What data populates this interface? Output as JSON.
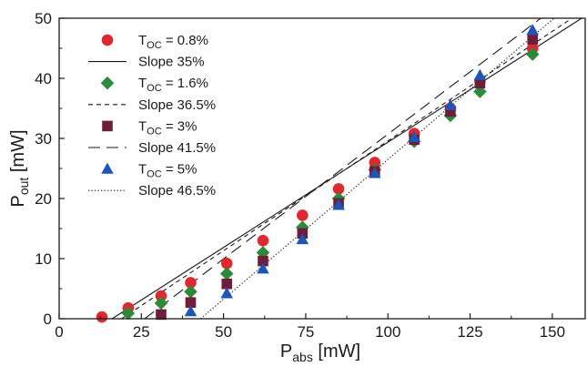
{
  "chart_data": {
    "type": "scatter",
    "xlabel": {
      "main": "P",
      "sub": "abs",
      "unit": " [mW]"
    },
    "ylabel": {
      "main": "P",
      "sub": "out",
      "unit": " [mW]"
    },
    "xlim": [
      0,
      160
    ],
    "ylim": [
      0,
      50
    ],
    "xticks": [
      0,
      25,
      50,
      75,
      100,
      125,
      150
    ],
    "yticks": [
      0,
      10,
      20,
      30,
      40,
      50
    ],
    "grid": false,
    "legend_position": "top-left",
    "series": [
      {
        "legend_main": "T",
        "legend_sub": "OC",
        "legend_rest": " = 0.8%",
        "marker": "circle",
        "color": "#e0282f",
        "x": [
          13,
          21,
          31,
          40,
          51,
          62,
          74,
          85,
          96,
          108,
          119,
          128,
          144
        ],
        "y": [
          0.3,
          1.8,
          3.8,
          6.0,
          9.2,
          13.0,
          17.2,
          21.6,
          26.0,
          30.8,
          35.0,
          39.5,
          45.0
        ]
      },
      {
        "legend_main": "T",
        "legend_sub": "OC",
        "legend_rest": " = 1.6%",
        "marker": "diamond",
        "color": "#2e8a3a",
        "x": [
          21,
          31,
          40,
          51,
          62,
          74,
          85,
          96,
          108,
          119,
          128,
          144
        ],
        "y": [
          0.9,
          2.6,
          4.5,
          7.5,
          11.0,
          15.2,
          20.0,
          24.8,
          29.5,
          33.8,
          37.8,
          44.0
        ]
      },
      {
        "legend_main": "T",
        "legend_sub": "OC",
        "legend_rest": " = 3%",
        "marker": "square",
        "color": "#6e1d3b",
        "x": [
          31,
          40,
          51,
          62,
          74,
          85,
          96,
          108,
          119,
          128,
          144
        ],
        "y": [
          0.7,
          2.7,
          5.8,
          9.6,
          14.2,
          19.2,
          24.5,
          29.8,
          34.5,
          39.2,
          46.5
        ]
      },
      {
        "legend_main": "T",
        "legend_sub": "OC",
        "legend_rest": " =  5%",
        "marker": "triangle",
        "color": "#1f55b5",
        "x": [
          40,
          51,
          62,
          74,
          85,
          96,
          108,
          119,
          128,
          144
        ],
        "y": [
          1.2,
          4.2,
          8.3,
          13.2,
          18.9,
          24.2,
          30.2,
          35.5,
          40.5,
          48.0
        ]
      }
    ],
    "fits": [
      {
        "label": "Slope 35%",
        "dash": "solid",
        "slope": 0.35,
        "x0": 16.1
      },
      {
        "label": "Slope 36.5%",
        "dash": "short-dash",
        "slope": 0.365,
        "x0": 19.0
      },
      {
        "label": "Slope 41.5%",
        "dash": "long-dash",
        "slope": 0.415,
        "x0": 26.0
      },
      {
        "label": "Slope 46.5%",
        "dash": "dotted",
        "slope": 0.465,
        "x0": 43.0
      }
    ],
    "legend_order": [
      "s0",
      "f0",
      "s1",
      "f1",
      "s2",
      "f2",
      "s3",
      "f3"
    ]
  }
}
